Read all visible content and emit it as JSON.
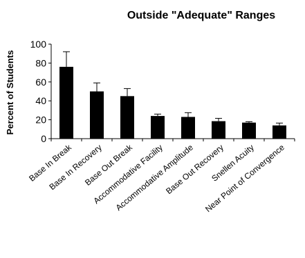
{
  "chart_data": {
    "type": "bar",
    "title": "Outside \"Adequate\" Ranges",
    "xlabel": "",
    "ylabel": "Percent of Students",
    "ylim": [
      0,
      100
    ],
    "yticks": [
      0,
      20,
      40,
      60,
      80,
      100
    ],
    "categories": [
      "Base In Break",
      "Base In Recovery",
      "Base Out Break",
      "Accommodative Facility",
      "Accommodative Amplitude",
      "Base Out Recovery",
      "Snellen Acuity",
      "Near Point of Convergence"
    ],
    "values": [
      76,
      50,
      45,
      24,
      23,
      18.5,
      17,
      14
    ],
    "error_upper": [
      16,
      9,
      8,
      2,
      4.5,
      3,
      1,
      2.5
    ],
    "bar_color": "#000000",
    "grid": false,
    "legend": "none"
  }
}
